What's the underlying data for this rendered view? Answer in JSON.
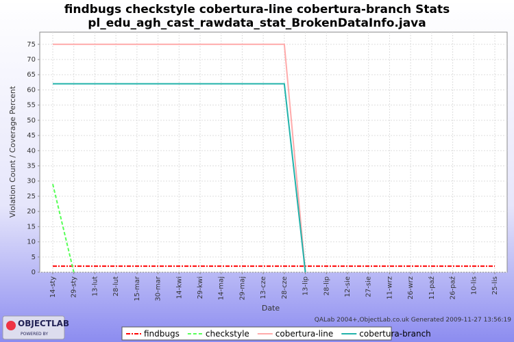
{
  "chart_data": {
    "type": "line",
    "title": "findbugs checkstyle cobertura-line cobertura-branch  Stats",
    "subtitle": "pl_edu_agh_cast_rawdata_stat_BrokenDataInfo.java",
    "x_label": "Date",
    "y_label": "Violation Count / Coverage Percent",
    "categories": [
      "14-sty",
      "29-sty",
      "13-lut",
      "28-lut",
      "15-mar",
      "30-mar",
      "14-kwi",
      "29-kwi",
      "14-maj",
      "29-maj",
      "13-cze",
      "28-cze",
      "13-lip",
      "28-lip",
      "12-sie",
      "27-sie",
      "11-wrz",
      "26-wrz",
      "11-paź",
      "26-paź",
      "10-lis",
      "25-lis"
    ],
    "series": [
      {
        "name": "findbugs",
        "color": "#ff0000",
        "dash": "6,2,2,2",
        "values": [
          2,
          2,
          2,
          2,
          2,
          2,
          2,
          2,
          2,
          2,
          2,
          2,
          2,
          2,
          2,
          2,
          2,
          2,
          2,
          2,
          2,
          2
        ]
      },
      {
        "name": "checkstyle",
        "color": "#55ff55",
        "dash": "5,3",
        "values": [
          29,
          0,
          null,
          null,
          null,
          null,
          null,
          null,
          null,
          null,
          null,
          null,
          null,
          null,
          null,
          null,
          null,
          null,
          null,
          null,
          null,
          null
        ]
      },
      {
        "name": "cobertura-line",
        "color": "#ffaaaa",
        "dash": "",
        "values": [
          75,
          75,
          75,
          75,
          75,
          75,
          75,
          75,
          75,
          75,
          75,
          75,
          0,
          null,
          null,
          null,
          null,
          null,
          null,
          null,
          null,
          null
        ]
      },
      {
        "name": "cobertura-branch",
        "color": "#20b2aa",
        "dash": "",
        "values": [
          62,
          62,
          62,
          62,
          62,
          62,
          62,
          62,
          62,
          62,
          62,
          62,
          0,
          null,
          null,
          null,
          null,
          null,
          null,
          null,
          null,
          null
        ]
      }
    ],
    "ylim": [
      0,
      79
    ],
    "yticks": [
      0,
      5,
      10,
      15,
      20,
      25,
      30,
      35,
      40,
      45,
      50,
      55,
      60,
      65,
      70,
      75
    ],
    "grid": true,
    "footer": "QALab 2004+,ObjectLab.co.uk Generated 2009-11-27 13:56:19",
    "logo": "OBJECTLAB",
    "logo_sub": "POWERED BY"
  }
}
